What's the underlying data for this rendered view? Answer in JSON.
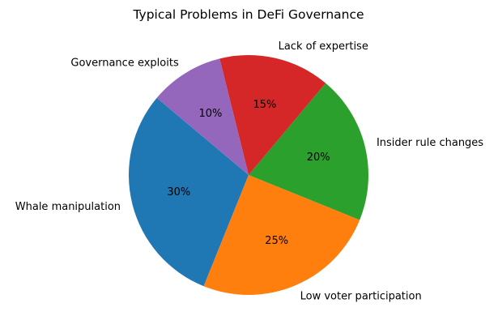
{
  "chart_data": {
    "type": "pie",
    "title": "Typical Problems in DeFi Governance",
    "slices": [
      {
        "label": "Whale manipulation",
        "value": 30,
        "pct_label": "30%",
        "color": "#1f77b4"
      },
      {
        "label": "Low voter participation",
        "value": 25,
        "pct_label": "25%",
        "color": "#ff7f0e"
      },
      {
        "label": "Insider rule changes",
        "value": 20,
        "pct_label": "20%",
        "color": "#2ca02c"
      },
      {
        "label": "Lack of expertise",
        "value": 15,
        "pct_label": "15%",
        "color": "#d62728"
      },
      {
        "label": "Governance exploits",
        "value": 10,
        "pct_label": "10%",
        "color": "#9467bd"
      }
    ],
    "legend": "none"
  }
}
